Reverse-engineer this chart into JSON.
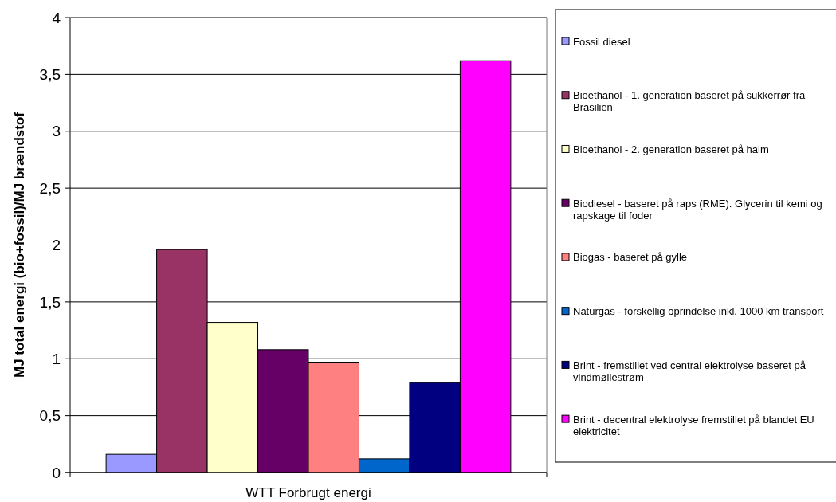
{
  "chart_data": {
    "type": "bar",
    "ylabel": "MJ total energi (bio+fossil)/MJ brændstof",
    "categories": [
      "WTT Forbrugt energi"
    ],
    "series": [
      {
        "name": "Fossil diesel",
        "color": "#9999ff",
        "values": [
          0.16
        ]
      },
      {
        "name": "Bioethanol  - 1. generation baseret på sukkerrør fra Brasilien",
        "color": "#993366",
        "values": [
          1.96
        ]
      },
      {
        "name": "Bioethanol - 2. generation baseret på halm",
        "color": "#ffffcc",
        "values": [
          1.32
        ]
      },
      {
        "name": "Biodiesel - baseret på raps (RME). Glycerin til kemi og rapskage til foder",
        "color": "#660066",
        "values": [
          1.08
        ]
      },
      {
        "name": "Biogas - baseret på gylle",
        "color": "#ff8080",
        "values": [
          0.97
        ]
      },
      {
        "name": "Naturgas  - forskellig oprindelse inkl. 1000 km transport",
        "color": "#0066cc",
        "values": [
          0.12
        ]
      },
      {
        "name": "Brint - fremstillet ved central elektrolyse baseret på vindmøllestrøm",
        "color": "#000080",
        "values": [
          0.79
        ]
      },
      {
        "name": "Brint - decentral elektrolyse fremstillet på blandet EU elektricitet",
        "color": "#ff00ff",
        "values": [
          3.62
        ]
      }
    ],
    "ylim": [
      0,
      4
    ],
    "yticks": [
      0,
      {
        "value": 0.5,
        "label": "0,5"
      },
      1,
      {
        "value": 1.5,
        "label": "1,5"
      },
      2,
      {
        "value": 2.5,
        "label": "2,5"
      },
      3,
      {
        "value": 3.5,
        "label": "3,5"
      },
      4
    ],
    "grid": "y",
    "legend": "right"
  }
}
